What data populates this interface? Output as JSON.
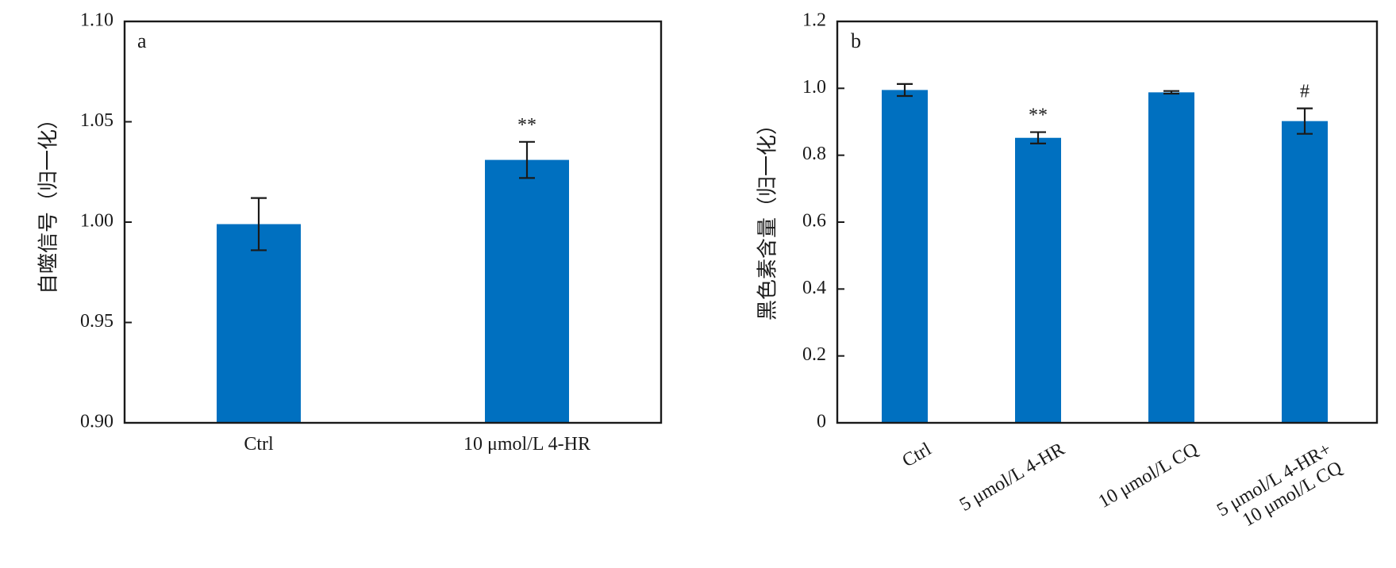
{
  "chart_data": [
    {
      "type": "bar",
      "panel_label": "a",
      "ylabel": "自噬信号（归一化）",
      "xlabel": "",
      "ylim": [
        0.9,
        1.1
      ],
      "yticks": [
        "0.90",
        "0.95",
        "1.00",
        "1.05",
        "1.10"
      ],
      "ytick_values": [
        0.9,
        0.95,
        1.0,
        1.05,
        1.1
      ],
      "categories": [
        "Ctrl",
        "10 μmol/L 4-HR"
      ],
      "values": [
        0.999,
        1.031
      ],
      "errors": [
        0.013,
        0.009
      ],
      "annotations": [
        "",
        "**"
      ],
      "bar_color": "#0070c0",
      "grid": false
    },
    {
      "type": "bar",
      "panel_label": "b",
      "ylabel": "黑色素含量（归一化）",
      "xlabel": "",
      "ylim": [
        0,
        1.2
      ],
      "yticks": [
        "0",
        "0.2",
        "0.4",
        "0.6",
        "0.8",
        "1.0",
        "1.2"
      ],
      "ytick_values": [
        0,
        0.2,
        0.4,
        0.6,
        0.8,
        1.0,
        1.2
      ],
      "categories": [
        "Ctrl",
        "5 μmol/L 4-HR",
        "10 μmol/L CQ",
        "5 μmol/L 4-HR+\n10 μmol/L CQ"
      ],
      "values": [
        0.995,
        0.852,
        0.988,
        0.902
      ],
      "errors": [
        0.018,
        0.017,
        0.004,
        0.038
      ],
      "annotations": [
        "",
        "**",
        "",
        "#"
      ],
      "bar_color": "#0070c0",
      "grid": false
    }
  ]
}
